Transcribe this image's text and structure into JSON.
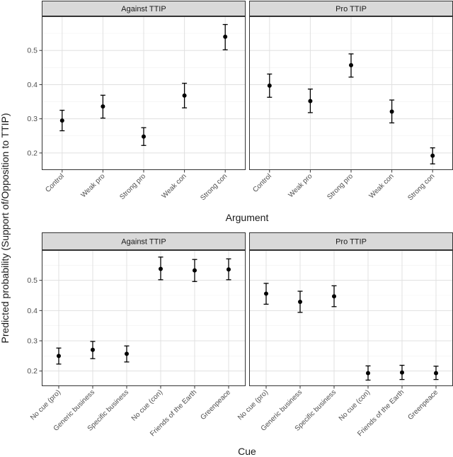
{
  "chart_data": {
    "type": "scatter",
    "y_axis_title": "Predicted probability (Support of/Opposition to TTIP)",
    "rows": [
      {
        "x_axis_title": "Argument",
        "ylim": [
          0.15,
          0.6
        ],
        "yticks": [
          "0.2",
          "0.3",
          "0.4",
          "0.5"
        ],
        "categories": [
          "Control",
          "Weak pro",
          "Strong pro",
          "Weak con",
          "Strong con"
        ],
        "panels": [
          {
            "title": "Against TTIP",
            "points": [
              {
                "estimate": 0.295,
                "lower": 0.265,
                "upper": 0.325
              },
              {
                "estimate": 0.336,
                "lower": 0.302,
                "upper": 0.369
              },
              {
                "estimate": 0.248,
                "lower": 0.222,
                "upper": 0.274
              },
              {
                "estimate": 0.368,
                "lower": 0.332,
                "upper": 0.404
              },
              {
                "estimate": 0.54,
                "lower": 0.502,
                "upper": 0.576
              }
            ]
          },
          {
            "title": "Pro TTIP",
            "points": [
              {
                "estimate": 0.397,
                "lower": 0.363,
                "upper": 0.431
              },
              {
                "estimate": 0.352,
                "lower": 0.318,
                "upper": 0.387
              },
              {
                "estimate": 0.457,
                "lower": 0.422,
                "upper": 0.49
              },
              {
                "estimate": 0.321,
                "lower": 0.288,
                "upper": 0.355
              },
              {
                "estimate": 0.192,
                "lower": 0.168,
                "upper": 0.215
              }
            ]
          }
        ]
      },
      {
        "x_axis_title": "Cue",
        "ylim": [
          0.15,
          0.6
        ],
        "yticks": [
          "0.2",
          "0.3",
          "0.4",
          "0.5"
        ],
        "categories": [
          "No cue (pro)",
          "Generic business",
          "Specific business",
          "No cue (con)",
          "Friends of the Earth",
          "Greenpeace"
        ],
        "panels": [
          {
            "title": "Against TTIP",
            "points": [
              {
                "estimate": 0.25,
                "lower": 0.223,
                "upper": 0.276
              },
              {
                "estimate": 0.27,
                "lower": 0.241,
                "upper": 0.298
              },
              {
                "estimate": 0.257,
                "lower": 0.23,
                "upper": 0.283
              },
              {
                "estimate": 0.538,
                "lower": 0.502,
                "upper": 0.577
              },
              {
                "estimate": 0.533,
                "lower": 0.496,
                "upper": 0.569
              },
              {
                "estimate": 0.536,
                "lower": 0.502,
                "upper": 0.571
              }
            ]
          },
          {
            "title": "Pro TTIP",
            "points": [
              {
                "estimate": 0.456,
                "lower": 0.421,
                "upper": 0.49
              },
              {
                "estimate": 0.429,
                "lower": 0.394,
                "upper": 0.464
              },
              {
                "estimate": 0.447,
                "lower": 0.413,
                "upper": 0.482
              },
              {
                "estimate": 0.193,
                "lower": 0.17,
                "upper": 0.217
              },
              {
                "estimate": 0.195,
                "lower": 0.172,
                "upper": 0.219
              },
              {
                "estimate": 0.193,
                "lower": 0.172,
                "upper": 0.216
              }
            ]
          }
        ]
      }
    ]
  }
}
